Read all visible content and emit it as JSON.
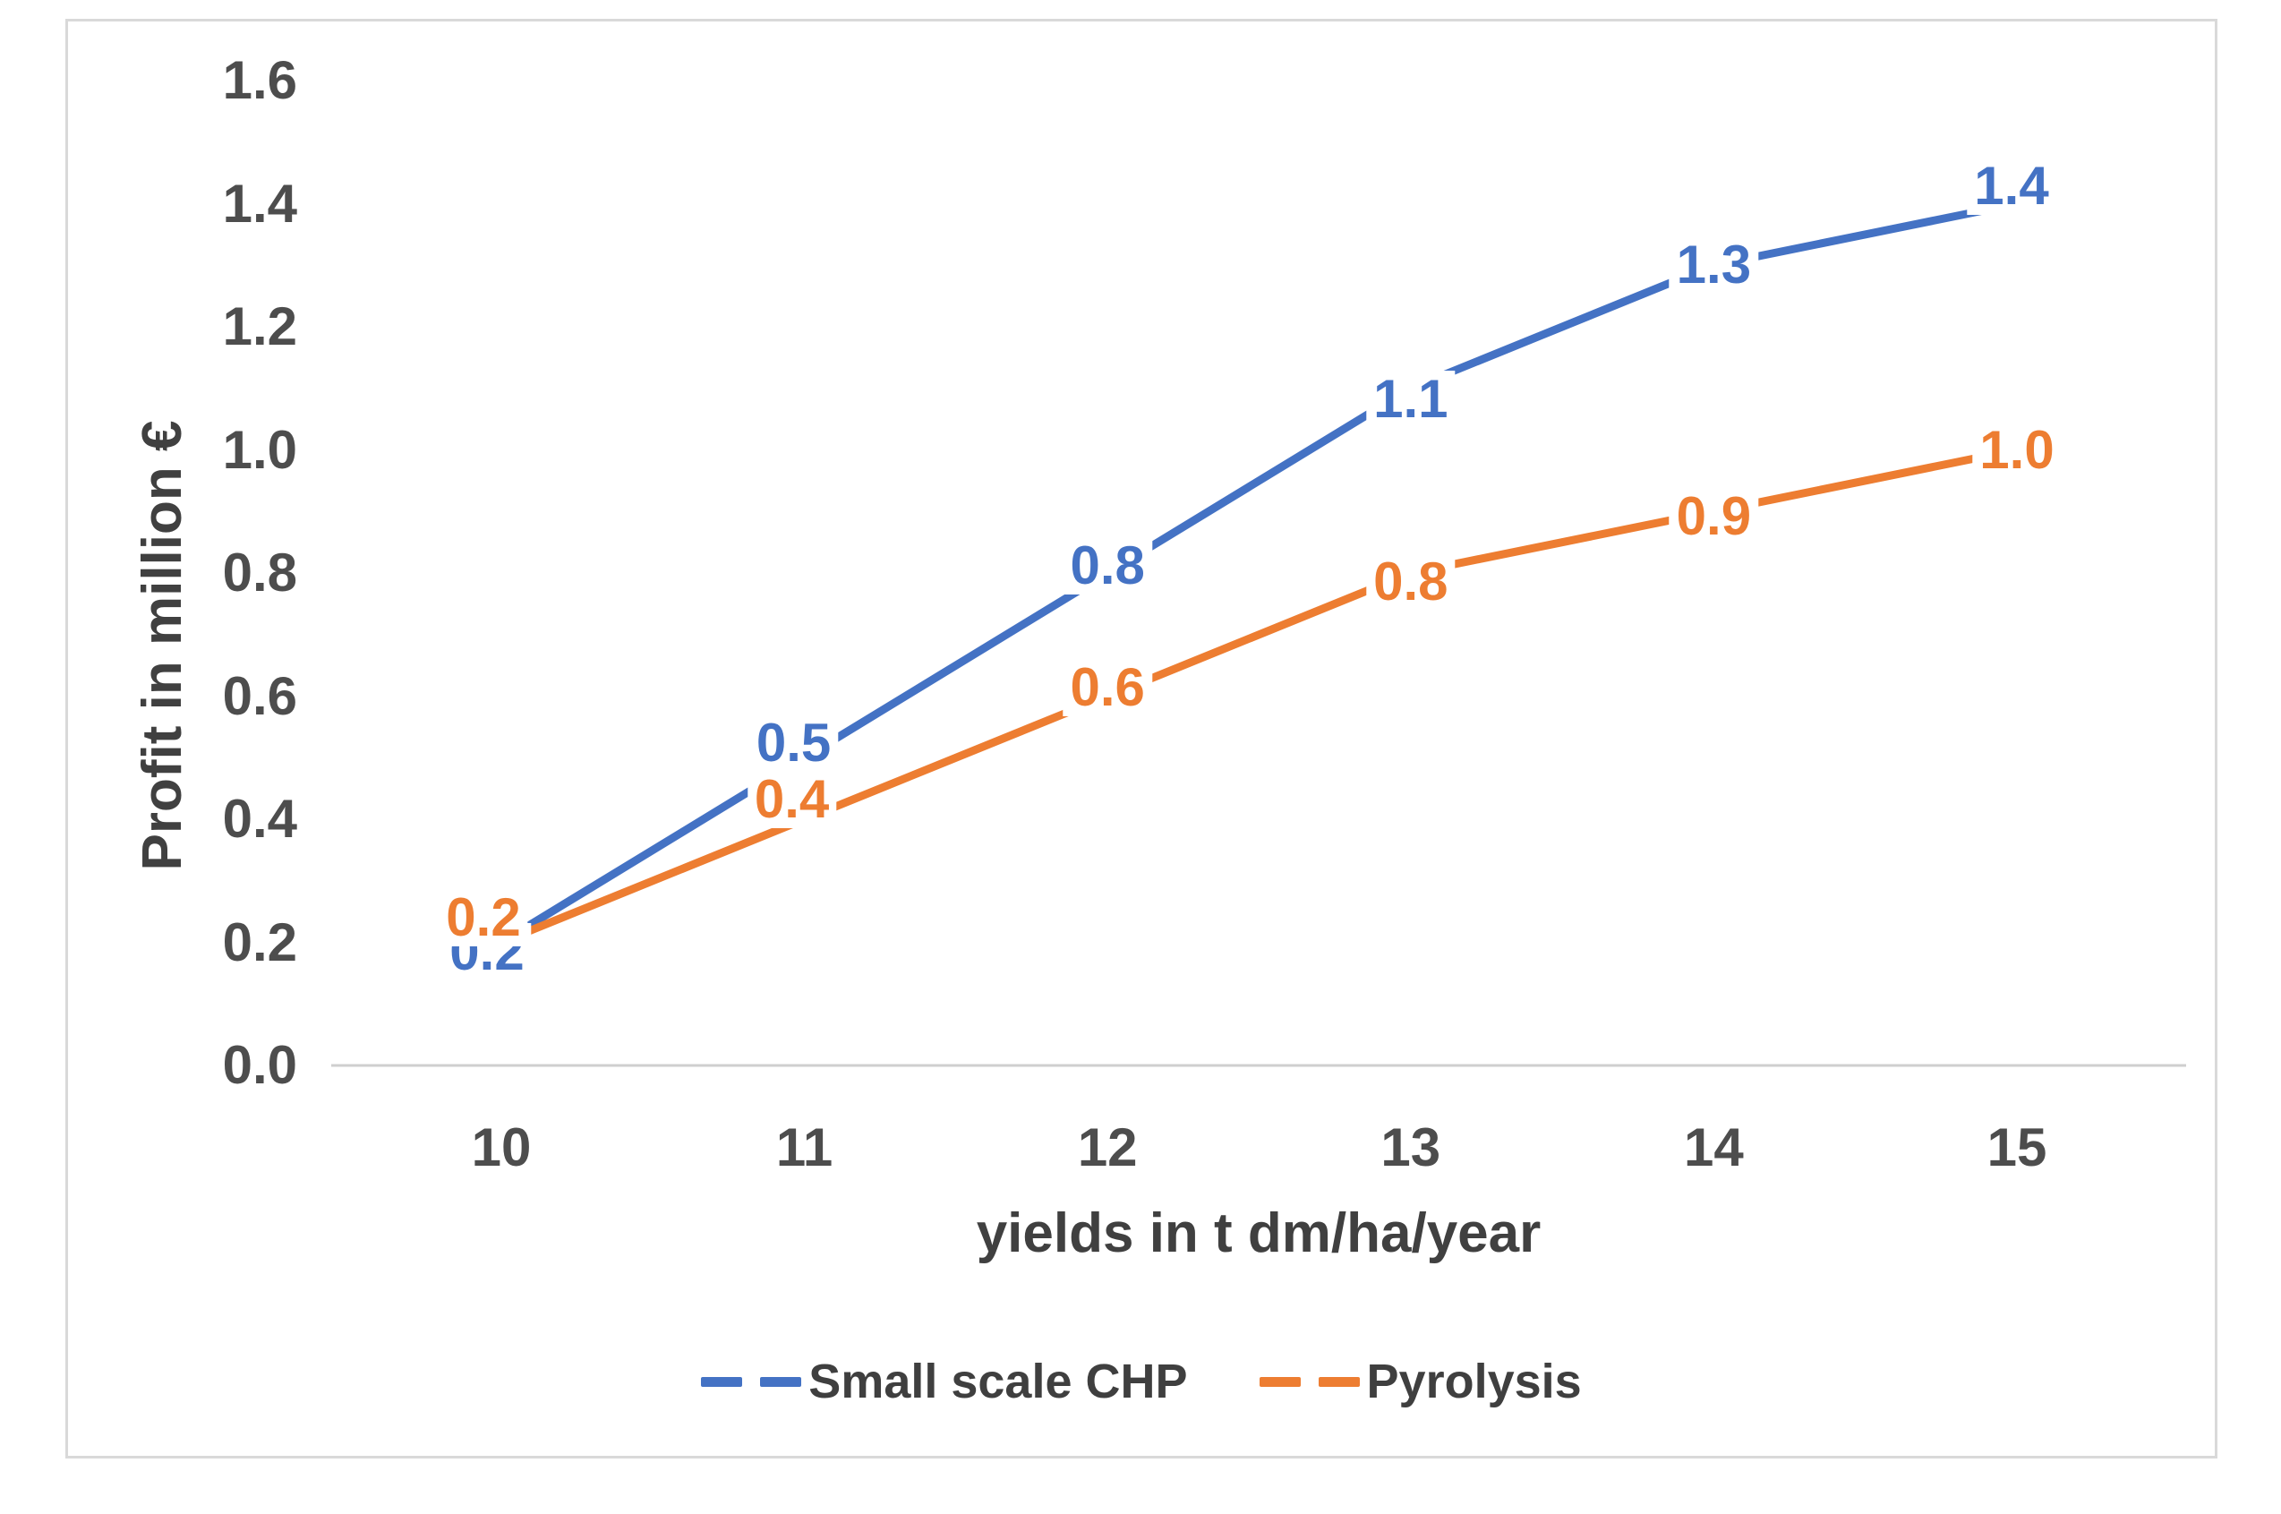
{
  "chart_data": {
    "type": "line",
    "x": [
      10,
      11,
      12,
      13,
      14,
      15
    ],
    "xticks": [
      "10",
      "11",
      "12",
      "13",
      "14",
      "15"
    ],
    "xlabel": "yields in t dm/ha/year",
    "ylabel": "Profit in million €",
    "ylim": [
      0.0,
      1.6
    ],
    "ytick_step": 0.2,
    "yticks": [
      "0.0",
      "0.2",
      "0.4",
      "0.6",
      "0.8",
      "1.0",
      "1.2",
      "1.4",
      "1.6"
    ],
    "grid": false,
    "legend_position": "bottom",
    "series": [
      {
        "name": "Small scale CHP",
        "color": "#4472C4",
        "values": [
          0.2,
          0.5,
          0.8,
          1.1,
          1.3,
          1.4
        ],
        "labels": [
          "0.2",
          "0.5",
          "0.8",
          "1.1",
          "1.3",
          "1.4"
        ]
      },
      {
        "name": "Pyrolysis",
        "color": "#ED7D31",
        "values": [
          0.2,
          0.4,
          0.6,
          0.8,
          0.9,
          1.0
        ],
        "labels": [
          "0.2",
          "0.4",
          "0.6",
          "0.8",
          "0.9",
          "1.0"
        ]
      }
    ]
  },
  "colors": {
    "background": "#ffffff",
    "frame_border": "#d9d9d9",
    "axis_line": "#cfcfcf",
    "tick_text": "#4d4d4d",
    "title_text": "#404040",
    "legend_text": "#3f3f3f"
  }
}
